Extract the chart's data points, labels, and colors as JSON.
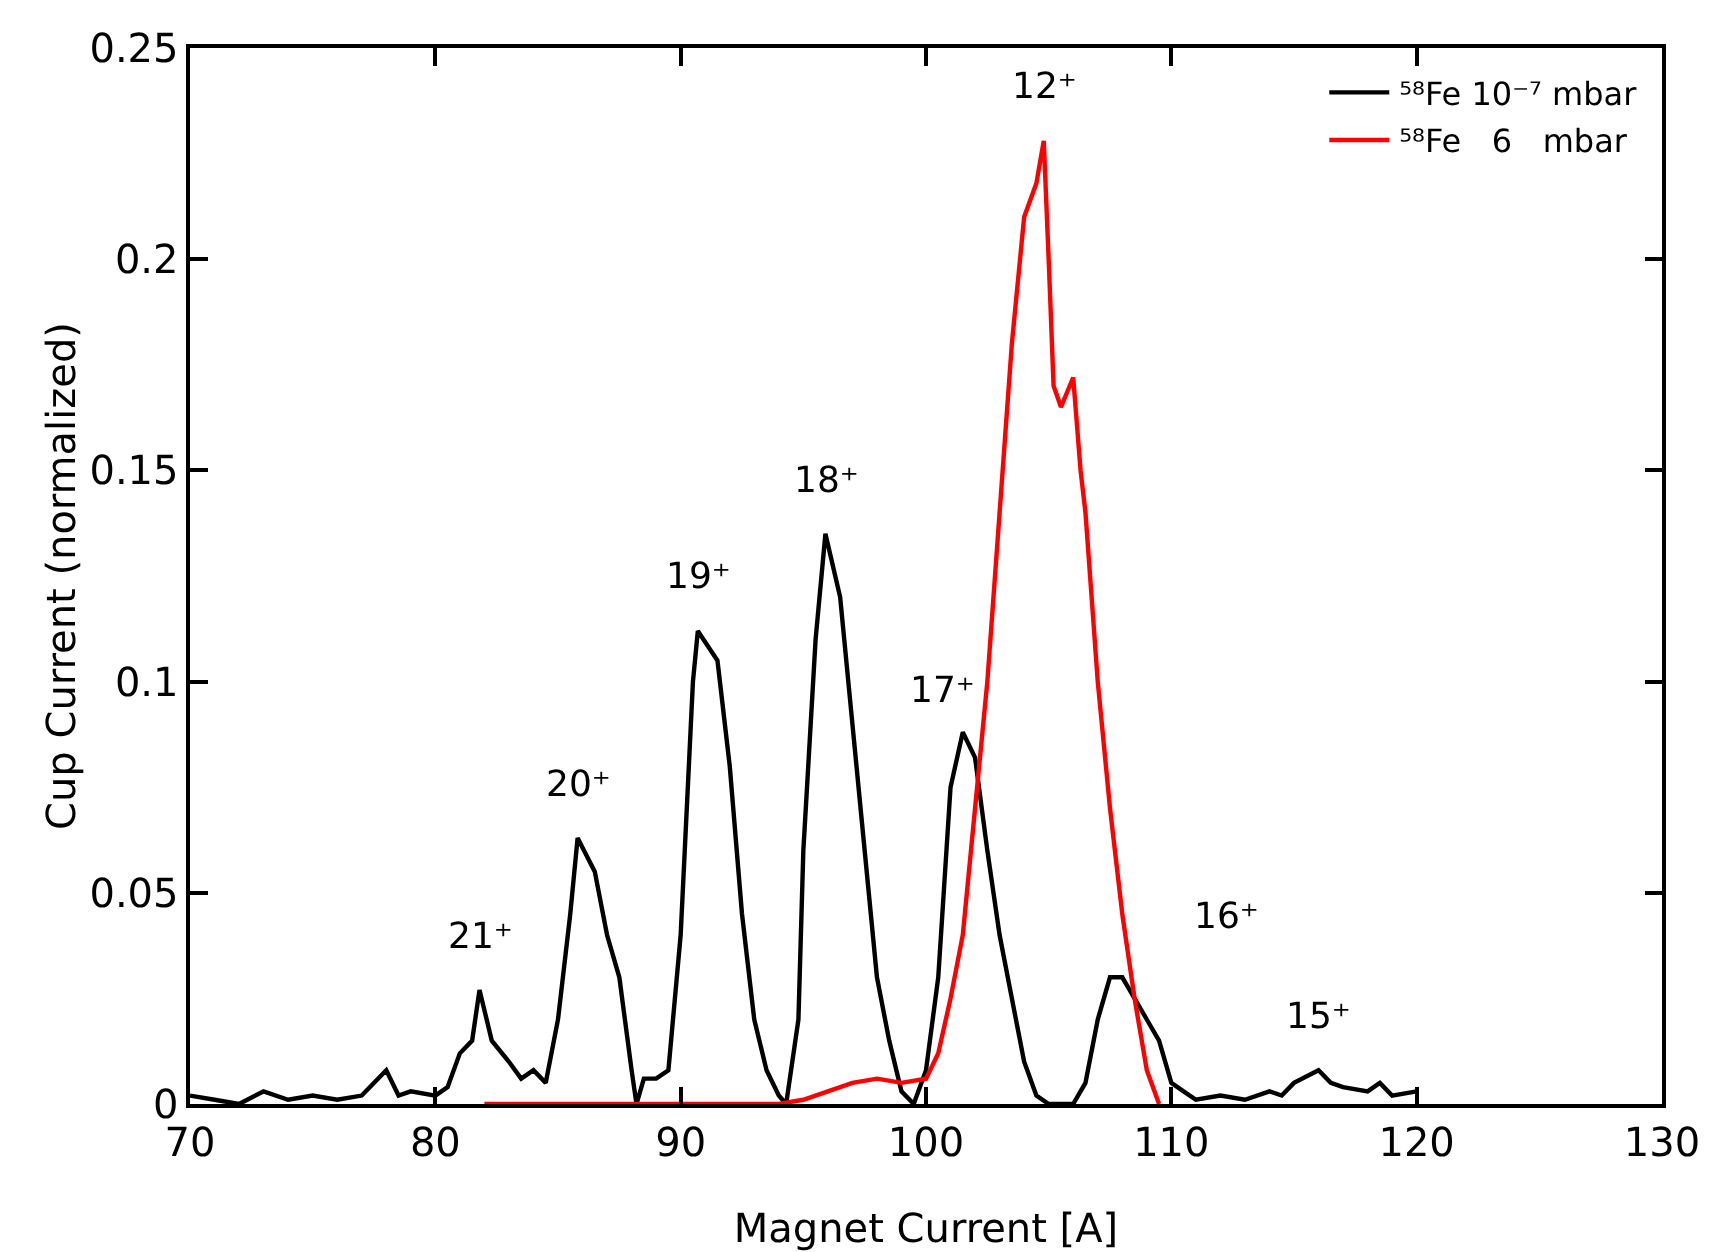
{
  "chart_data": {
    "type": "line",
    "xlabel": "Magnet Current [A]",
    "ylabel": "Cup Current (normalized)",
    "xlim": [
      70,
      130
    ],
    "xticks": [
      70,
      80,
      90,
      100,
      110,
      120,
      130
    ],
    "ylim": [
      0,
      0.25
    ],
    "yticks": [
      0,
      0.05,
      0.1,
      0.15,
      0.2,
      0.25
    ],
    "grid": false,
    "legend": "top right",
    "marker": "none",
    "line_style": "solid",
    "series": [
      {
        "name": "⁵⁸Fe 10⁻⁷ mbar",
        "color": "#000000",
        "x": [
          70,
          71,
          72,
          73,
          74,
          75,
          76,
          77,
          78,
          78.5,
          79,
          80,
          80.5,
          81,
          81.5,
          81.8,
          82.3,
          83,
          83.5,
          84,
          84.5,
          85,
          85.5,
          85.8,
          86.5,
          87,
          87.5,
          88,
          88.2,
          88.5,
          89,
          89.5,
          90,
          90.5,
          90.7,
          91.5,
          92,
          92.5,
          93,
          93.5,
          94,
          94.3,
          94.8,
          95,
          95.5,
          95.9,
          96.5,
          97,
          97.5,
          98,
          98.5,
          99,
          99.5,
          100,
          100.5,
          101,
          101.5,
          102,
          102.5,
          103,
          103.5,
          104,
          104.5,
          105,
          106,
          106.5,
          107,
          107.5,
          108,
          108.5,
          109,
          109.5,
          110,
          110.5,
          111,
          112,
          113,
          114,
          114.5,
          115,
          116,
          116.5,
          117,
          118,
          118.5,
          119,
          120
        ],
        "values": [
          0.002,
          0.001,
          0,
          0.003,
          0.001,
          0.002,
          0.001,
          0.002,
          0.008,
          0.002,
          0.003,
          0.002,
          0.004,
          0.012,
          0.015,
          0.027,
          0.015,
          0.01,
          0.006,
          0.008,
          0.005,
          0.02,
          0.045,
          0.063,
          0.055,
          0.04,
          0.03,
          0.008,
          0,
          0.006,
          0.006,
          0.008,
          0.04,
          0.1,
          0.112,
          0.105,
          0.08,
          0.045,
          0.02,
          0.008,
          0.002,
          0,
          0.02,
          0.06,
          0.11,
          0.135,
          0.12,
          0.09,
          0.06,
          0.03,
          0.015,
          0.003,
          0,
          0.008,
          0.03,
          0.075,
          0.088,
          0.082,
          0.06,
          0.04,
          0.025,
          0.01,
          0.002,
          0,
          0,
          0.005,
          0.02,
          0.03,
          0.03,
          0.025,
          0.02,
          0.015,
          0.005,
          0.003,
          0.001,
          0.002,
          0.001,
          0.003,
          0.002,
          0.005,
          0.008,
          0.005,
          0.004,
          0.003,
          0.005,
          0.002,
          0.003
        ]
      },
      {
        "name": "⁵⁸Fe   6   mbar",
        "color": "#ff0000",
        "x": [
          82,
          94,
          95,
          96,
          97,
          98,
          99,
          100,
          100.5,
          101,
          101.5,
          102,
          102.5,
          103,
          103.5,
          104,
          104.5,
          104.8,
          105,
          105.2,
          105.5,
          106,
          106.3,
          106.5,
          107,
          107.5,
          108,
          108.5,
          109,
          109.5
        ],
        "values": [
          0,
          0,
          0.001,
          0.003,
          0.005,
          0.006,
          0.005,
          0.006,
          0.012,
          0.025,
          0.04,
          0.07,
          0.1,
          0.14,
          0.18,
          0.21,
          0.218,
          0.228,
          0.2,
          0.17,
          0.165,
          0.172,
          0.15,
          0.14,
          0.1,
          0.07,
          0.045,
          0.025,
          0.008,
          0
        ]
      }
    ],
    "annotations": [
      {
        "text": "21⁺",
        "x": 81.8,
        "y": 0.027
      },
      {
        "text": "20⁺",
        "x": 85.8,
        "y": 0.063
      },
      {
        "text": "19⁺",
        "x": 90.7,
        "y": 0.112
      },
      {
        "text": "18⁺",
        "x": 95.9,
        "y": 0.135
      },
      {
        "text": "17⁺",
        "x": 101.5,
        "y": 0.088
      },
      {
        "text": "12⁺",
        "x": 104.8,
        "y": 0.228
      },
      {
        "text": "16⁺",
        "x": 107.5,
        "y": 0.03
      },
      {
        "text": "15⁺",
        "x": 116,
        "y": 0.008
      }
    ]
  }
}
